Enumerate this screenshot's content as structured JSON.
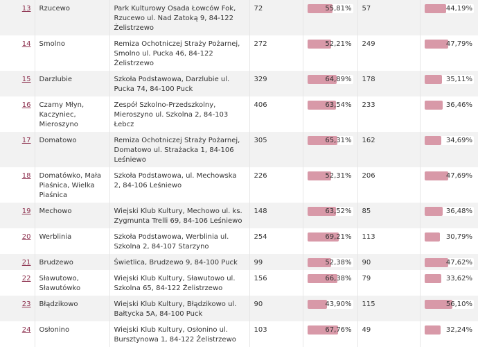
{
  "colors": {
    "bar": "#d899a8",
    "link": "#8c2f4d",
    "stripe": "#f2f2f2"
  },
  "rows": [
    {
      "num": "13",
      "name": "Rzucewo",
      "address": "Park Kulturowy Osada Łowców Fok, Rzucewo ul. Nad Zatoką 9, 84-122 Żelistrzewo",
      "count_a": "72",
      "pct_a": "55,81%",
      "frac_a": 55.81,
      "count_b": "57",
      "pct_b": "44,19%",
      "frac_b": 44.19
    },
    {
      "num": "14",
      "name": "Smolno",
      "address": "Remiza Ochotniczej Straży Pożarnej, Smolno ul. Pucka 46, 84-122 Żelistrzewo",
      "count_a": "272",
      "pct_a": "52,21%",
      "frac_a": 52.21,
      "count_b": "249",
      "pct_b": "47,79%",
      "frac_b": 47.79
    },
    {
      "num": "15",
      "name": "Darzlubie",
      "address": "Szkoła Podstawowa, Darzlubie ul. Pucka 74, 84-100 Puck",
      "count_a": "329",
      "pct_a": "64,89%",
      "frac_a": 64.89,
      "count_b": "178",
      "pct_b": "35,11%",
      "frac_b": 35.11
    },
    {
      "num": "16",
      "name": "Czarny Młyn, Kaczyniec, Mieroszyno",
      "address": "Zespół Szkolno-Przedszkolny, Mieroszyno ul. Szkolna 2, 84-103 Łebcz",
      "count_a": "406",
      "pct_a": "63,54%",
      "frac_a": 63.54,
      "count_b": "233",
      "pct_b": "36,46%",
      "frac_b": 36.46
    },
    {
      "num": "17",
      "name": "Domatowo",
      "address": "Remiza Ochotniczej Straży Pożarnej, Domatowo ul. Strażacka 1, 84-106 Leśniewo",
      "count_a": "305",
      "pct_a": "65,31%",
      "frac_a": 65.31,
      "count_b": "162",
      "pct_b": "34,69%",
      "frac_b": 34.69
    },
    {
      "num": "18",
      "name": "Domatówko, Mała Piaśnica, Wielka Piaśnica",
      "address": "Szkoła Podstawowa, ul. Mechowska 2, 84-106 Leśniewo",
      "count_a": "226",
      "pct_a": "52,31%",
      "frac_a": 52.31,
      "count_b": "206",
      "pct_b": "47,69%",
      "frac_b": 47.69
    },
    {
      "num": "19",
      "name": "Mechowo",
      "address": "Wiejski Klub Kultury, Mechowo ul. ks. Zygmunta Trelli 69, 84-106 Leśniewo",
      "count_a": "148",
      "pct_a": "63,52%",
      "frac_a": 63.52,
      "count_b": "85",
      "pct_b": "36,48%",
      "frac_b": 36.48
    },
    {
      "num": "20",
      "name": "Werblinia",
      "address": "Szkoła Podstawowa, Werblinia ul. Szkolna 2, 84-107 Starzyno",
      "count_a": "254",
      "pct_a": "69,21%",
      "frac_a": 69.21,
      "count_b": "113",
      "pct_b": "30,79%",
      "frac_b": 30.79
    },
    {
      "num": "21",
      "name": "Brudzewo",
      "address": "Świetlica, Brudzewo 9, 84-100 Puck",
      "count_a": "99",
      "pct_a": "52,38%",
      "frac_a": 52.38,
      "count_b": "90",
      "pct_b": "47,62%",
      "frac_b": 47.62
    },
    {
      "num": "22",
      "name": "Sławutowo, Sławutówko",
      "address": "Wiejski Klub Kultury, Sławutowo ul. Szkolna 65, 84-122 Żelistrzewo",
      "count_a": "156",
      "pct_a": "66,38%",
      "frac_a": 66.38,
      "count_b": "79",
      "pct_b": "33,62%",
      "frac_b": 33.62
    },
    {
      "num": "23",
      "name": "Błądzikowo",
      "address": "Wiejski Klub Kultury, Błądzikowo ul. Bałtycka 5A, 84-100 Puck",
      "count_a": "90",
      "pct_a": "43,90%",
      "frac_a": 43.9,
      "count_b": "115",
      "pct_b": "56,10%",
      "frac_b": 56.1
    },
    {
      "num": "24",
      "name": "Osłonino",
      "address": "Wiejski Klub Kultury, Osłonino ul. Bursztynowa 1, 84-122 Żelistrzewo",
      "count_a": "103",
      "pct_a": "67,76%",
      "frac_a": 67.76,
      "count_b": "49",
      "pct_b": "32,24%",
      "frac_b": 32.24
    }
  ]
}
